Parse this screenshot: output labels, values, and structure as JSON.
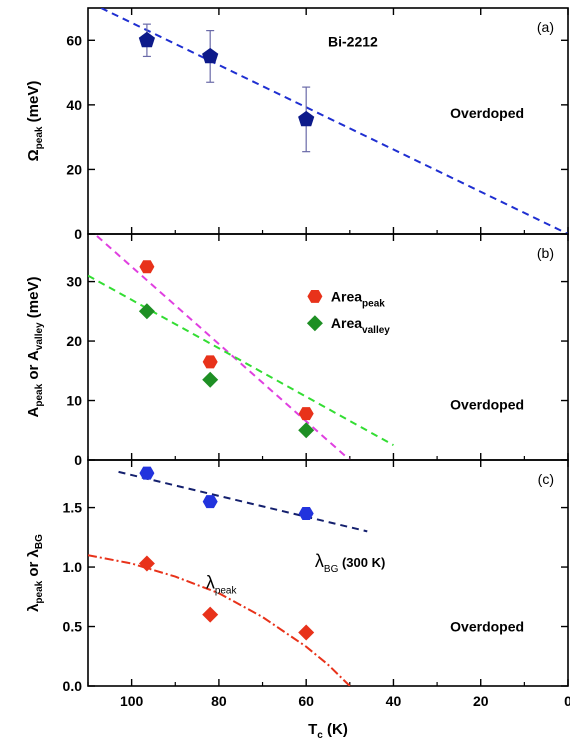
{
  "chart_data": [
    {
      "panel": "a",
      "type": "scatter",
      "panel_tag": "(a)",
      "ylabel_main": "Ω",
      "ylabel_sub": "peak",
      "ylabel_unit": " (meV)",
      "xlim": [
        110,
        0
      ],
      "ylim": [
        0,
        70
      ],
      "yticks": [
        0,
        20,
        40,
        60
      ],
      "annotations": [
        {
          "text": "Bi-2212",
          "x": 55,
          "y": 58
        },
        {
          "text": "Overdoped",
          "x": 27,
          "y": 36
        }
      ],
      "series": [
        {
          "marker": "pentagon",
          "color": "#0d1a8a",
          "points": [
            {
              "x": 96.5,
              "y": 60,
              "err": 5
            },
            {
              "x": 82,
              "y": 55,
              "err": 8
            },
            {
              "x": 60,
              "y": 35.5,
              "err": 10
            }
          ]
        }
      ],
      "fits": [
        {
          "color": "#1f2fd1",
          "dash": "7,5",
          "from": [
            107,
            70
          ],
          "to": [
            0,
            0
          ]
        }
      ]
    },
    {
      "panel": "b",
      "type": "scatter",
      "panel_tag": "(b)",
      "ylabel_main": "A",
      "ylabel_sub": "peak",
      "ylabel_mid": " or A",
      "ylabel_sub2": "valley",
      "ylabel_unit": " (meV)",
      "xlim": [
        110,
        0
      ],
      "ylim": [
        0,
        38
      ],
      "yticks": [
        0,
        10,
        20,
        30
      ],
      "annotations": [
        {
          "text": "Overdoped",
          "x": 27,
          "y": 8.5
        }
      ],
      "legend": [
        {
          "main": "Area",
          "sub": "peak",
          "marker": "hexagon",
          "color": "#e8321a"
        },
        {
          "main": "Area",
          "sub": "valley",
          "marker": "diamond",
          "color": "#1e8f24"
        }
      ],
      "series": [
        {
          "marker": "hexagon",
          "color": "#e8321a",
          "points": [
            {
              "x": 96.5,
              "y": 32.5
            },
            {
              "x": 82,
              "y": 16.5
            },
            {
              "x": 60,
              "y": 7.8
            }
          ]
        },
        {
          "marker": "diamond",
          "color": "#1e8f24",
          "points": [
            {
              "x": 96.5,
              "y": 25
            },
            {
              "x": 82,
              "y": 13.5
            },
            {
              "x": 60,
              "y": 5
            }
          ]
        }
      ],
      "fits": [
        {
          "color": "#e040e0",
          "dash": "7,5",
          "from": [
            110,
            39
          ],
          "to": [
            50,
            0
          ]
        },
        {
          "color": "#33dd33",
          "dash": "7,5",
          "from": [
            110,
            31
          ],
          "to": [
            40,
            2.5
          ]
        }
      ]
    },
    {
      "panel": "c",
      "type": "scatter",
      "panel_tag": "(c)",
      "ylabel_main": "λ",
      "ylabel_sub": "peak",
      "ylabel_mid": " or λ",
      "ylabel_sub2": "BG",
      "ylabel_unit": "",
      "xlabel_main": "T",
      "xlabel_sub": "c",
      "xlabel_unit": " (K)",
      "xlim": [
        110,
        0
      ],
      "ylim": [
        0,
        1.9
      ],
      "yticks": [
        0.0,
        0.5,
        1.0,
        1.5
      ],
      "xticks": [
        100,
        80,
        60,
        40,
        20,
        0
      ],
      "annotations": [
        {
          "text": "Overdoped",
          "x": 27,
          "y": 0.46
        },
        {
          "text": "λ",
          "sub": "BG",
          "after": " (300 K)",
          "x": 58,
          "y": 1.0
        },
        {
          "text": "λ",
          "sub": "peak",
          "x": 83,
          "y": 0.82
        }
      ],
      "series": [
        {
          "marker": "hexagon",
          "color": "#2233dd",
          "points": [
            {
              "x": 96.5,
              "y": 1.79
            },
            {
              "x": 82,
              "y": 1.55
            },
            {
              "x": 60,
              "y": 1.45
            }
          ]
        },
        {
          "marker": "diamond",
          "color": "#e8321a",
          "points": [
            {
              "x": 96.5,
              "y": 1.03
            },
            {
              "x": 82,
              "y": 0.6
            },
            {
              "x": 60,
              "y": 0.45
            }
          ]
        }
      ],
      "fits": [
        {
          "color": "#14206e",
          "dash": "7,5",
          "from": [
            103,
            1.8
          ],
          "to": [
            46,
            1.3
          ]
        },
        {
          "color": "#e8321a",
          "dash": "9,3,2,3",
          "curve": true,
          "points": [
            [
              110,
              1.1
            ],
            [
              100,
              1.03
            ],
            [
              90,
              0.92
            ],
            [
              80,
              0.78
            ],
            [
              70,
              0.58
            ],
            [
              60,
              0.33
            ],
            [
              55,
              0.18
            ],
            [
              50,
              0.0
            ]
          ]
        }
      ]
    }
  ]
}
